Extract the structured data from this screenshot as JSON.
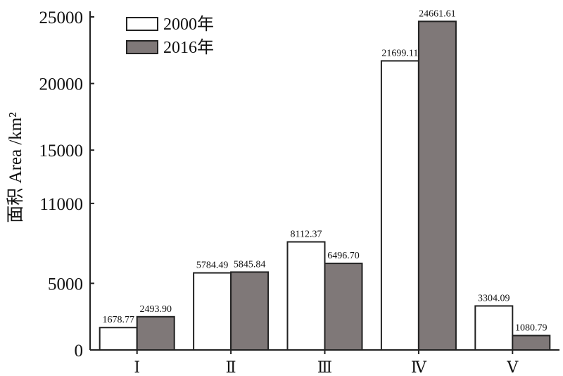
{
  "chart_data": {
    "type": "bar",
    "categories": [
      "Ⅰ",
      "Ⅱ",
      "Ⅲ",
      "Ⅳ",
      "Ⅴ"
    ],
    "series": [
      {
        "name": "2000年",
        "color": "#ffffff",
        "values": [
          1678.77,
          5784.49,
          8112.37,
          21699.11,
          3304.09
        ]
      },
      {
        "name": "2016年",
        "color": "#7f7878",
        "values": [
          2493.9,
          5845.84,
          6496.7,
          24661.61,
          1080.79
        ]
      }
    ],
    "data_labels": [
      [
        "1678.77",
        "5784.49",
        "8112.37",
        "21699.11",
        "3304.09"
      ],
      [
        "2493.90",
        "5845.84",
        "6496.70",
        "24661.61",
        "1080.79"
      ]
    ],
    "yticks": [
      0,
      5000,
      11000,
      15000,
      20000,
      25000
    ],
    "ytick_labels": [
      "0",
      "5000",
      "11000",
      "15000",
      "20000",
      "25000"
    ],
    "ylabel": "面积 Area /km²",
    "xlabel": "",
    "ylim": [
      0,
      25000
    ],
    "legend_position": "top-left",
    "grid": false
  }
}
